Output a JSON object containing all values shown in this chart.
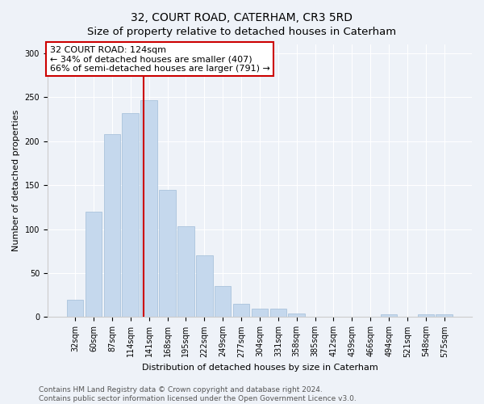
{
  "title": "32, COURT ROAD, CATERHAM, CR3 5RD",
  "subtitle": "Size of property relative to detached houses in Caterham",
  "xlabel": "Distribution of detached houses by size in Caterham",
  "ylabel": "Number of detached properties",
  "categories": [
    "32sqm",
    "60sqm",
    "87sqm",
    "114sqm",
    "141sqm",
    "168sqm",
    "195sqm",
    "222sqm",
    "249sqm",
    "277sqm",
    "304sqm",
    "331sqm",
    "358sqm",
    "385sqm",
    "412sqm",
    "439sqm",
    "466sqm",
    "494sqm",
    "521sqm",
    "548sqm",
    "575sqm"
  ],
  "values": [
    20,
    120,
    208,
    232,
    247,
    145,
    103,
    70,
    35,
    15,
    10,
    10,
    4,
    0,
    0,
    0,
    0,
    3,
    0,
    3,
    3
  ],
  "bar_color": "#c5d8ed",
  "bar_edge_color": "#a0bcd8",
  "vline_pos": 3.72,
  "annotation_line1": "32 COURT ROAD: 124sqm",
  "annotation_line2": "← 34% of detached houses are smaller (407)",
  "annotation_line3": "66% of semi-detached houses are larger (791) →",
  "annotation_box_color": "#ffffff",
  "annotation_box_edgecolor": "#cc0000",
  "vline_color": "#cc0000",
  "ylim": [
    0,
    310
  ],
  "yticks": [
    0,
    50,
    100,
    150,
    200,
    250,
    300
  ],
  "footer1": "Contains HM Land Registry data © Crown copyright and database right 2024.",
  "footer2": "Contains public sector information licensed under the Open Government Licence v3.0.",
  "bg_color": "#eef2f8",
  "plot_bg_color": "#eef2f8",
  "title_fontsize": 10,
  "axis_label_fontsize": 8,
  "tick_fontsize": 7,
  "footer_fontsize": 6.5,
  "annotation_fontsize": 8
}
